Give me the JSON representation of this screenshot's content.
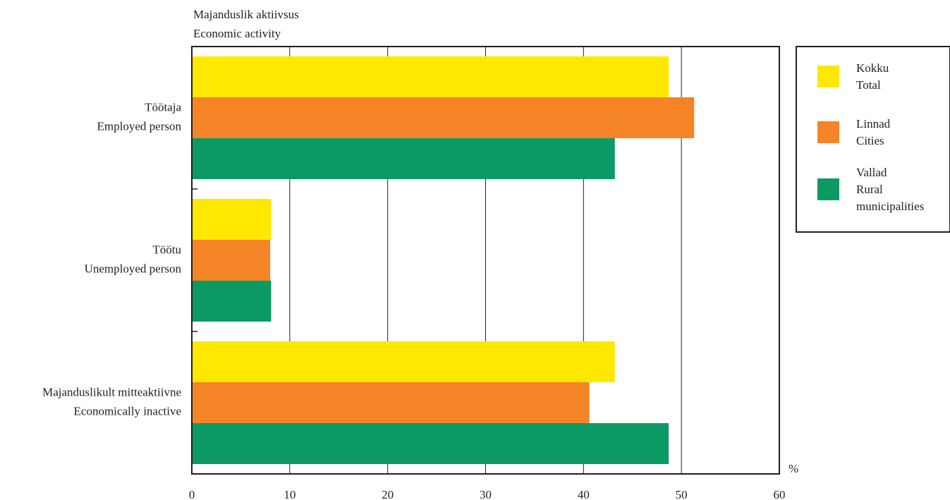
{
  "chart_data": {
    "type": "bar",
    "orientation": "horizontal",
    "y_axis_title": [
      "Majanduslik aktiivsus",
      "Economic activity"
    ],
    "x_unit": "%",
    "xlim": [
      0,
      60
    ],
    "x_ticks": [
      0,
      10,
      20,
      30,
      40,
      50,
      60
    ],
    "grid": "vertical",
    "legend_position": "right",
    "categories": [
      [
        "Töötaja",
        "Employed person"
      ],
      [
        "Töötu",
        "Unemployed person"
      ],
      [
        "Majanduslikult mitteaktiivne",
        "Economically inactive"
      ]
    ],
    "series": [
      {
        "name": [
          "Kokku",
          "Total"
        ],
        "color": "#ffe800",
        "values": [
          48.7,
          8.1,
          43.2
        ]
      },
      {
        "name": [
          "Linnad",
          "Cities"
        ],
        "color": "#f58426",
        "values": [
          51.3,
          8.0,
          40.6
        ]
      },
      {
        "name": [
          "Vallad",
          "Rural",
          "municipalities"
        ],
        "color": "#0b9a63",
        "values": [
          43.2,
          8.1,
          48.7
        ]
      }
    ]
  }
}
